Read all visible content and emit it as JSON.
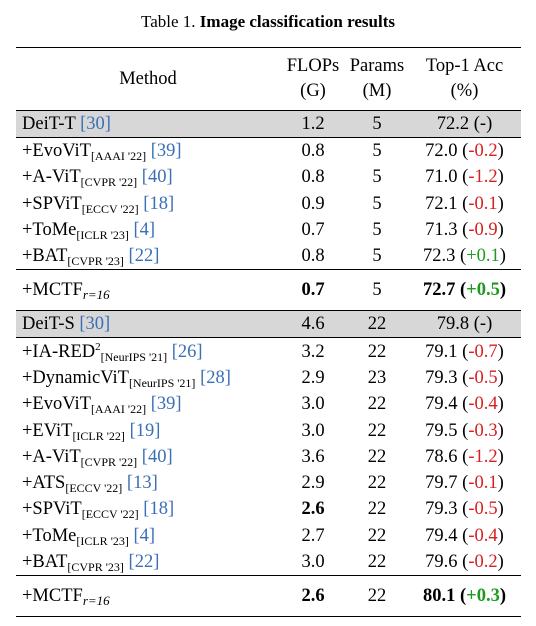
{
  "caption": {
    "label": "Table 1.",
    "title": "Image classification results"
  },
  "headers": {
    "method": "Method",
    "flops": [
      "FLOPs",
      "(G)"
    ],
    "params": [
      "Params",
      "(M)"
    ],
    "acc": [
      "Top-1 Acc",
      "(%)"
    ]
  },
  "groups": [
    {
      "baseline": {
        "name": "DeiT-T ",
        "cite": "[30]",
        "flops": "1.2",
        "params": "5",
        "acc": "72.2",
        "delta": "(-)"
      },
      "rows": [
        {
          "name": "+EvoViT",
          "venue": "[AAAI '22]",
          "cite": " [39]",
          "flops": "0.8",
          "params": "5",
          "acc": "72.0",
          "delta": "-0.2",
          "sign": "neg"
        },
        {
          "name": "+A-ViT",
          "venue": "[CVPR '22]",
          "cite": " [40]",
          "flops": "0.8",
          "params": "5",
          "acc": "71.0",
          "delta": "-1.2",
          "sign": "neg"
        },
        {
          "name": "+SPViT",
          "venue": "[ECCV '22]",
          "cite": " [18]",
          "flops": "0.9",
          "params": "5",
          "acc": "72.1",
          "delta": "-0.1",
          "sign": "neg"
        },
        {
          "name": "+ToMe",
          "venue": "[ICLR '23]",
          "cite": " [4]",
          "flops": "0.7",
          "params": "5",
          "acc": "71.3",
          "delta": "-0.9",
          "sign": "neg"
        },
        {
          "name": "+BAT",
          "venue": "[CVPR '23]",
          "cite": " [22]",
          "flops": "0.8",
          "params": "5",
          "acc": "72.3",
          "delta": "+0.1",
          "sign": "pos"
        }
      ],
      "summary": {
        "name": "+MCTF",
        "sub": "r=16",
        "flops": "0.7",
        "params": "5",
        "acc": "72.7",
        "delta": "+0.5"
      }
    },
    {
      "baseline": {
        "name": "DeiT-S ",
        "cite": "[30]",
        "flops": "4.6",
        "params": "22",
        "acc": "79.8",
        "delta": "(-)"
      },
      "rows": [
        {
          "name": "+IA-RED",
          "sup": "2",
          "venue": "[NeurIPS '21]",
          "cite": " [26]",
          "flops": "3.2",
          "params": "22",
          "acc": "79.1",
          "delta": "-0.7",
          "sign": "neg"
        },
        {
          "name": "+DynamicViT",
          "venue": "[NeurIPS '21]",
          "cite": " [28]",
          "flops": "2.9",
          "params": "23",
          "acc": "79.3",
          "delta": "-0.5",
          "sign": "neg"
        },
        {
          "name": "+EvoViT",
          "venue": "[AAAI '22]",
          "cite": " [39]",
          "flops": "3.0",
          "params": "22",
          "acc": "79.4",
          "delta": "-0.4",
          "sign": "neg"
        },
        {
          "name": "+EViT",
          "venue": "[ICLR '22]",
          "cite": " [19]",
          "flops": "3.0",
          "params": "22",
          "acc": "79.5",
          "delta": "-0.3",
          "sign": "neg"
        },
        {
          "name": "+A-ViT",
          "venue": "[CVPR '22]",
          "cite": " [40]",
          "flops": "3.6",
          "params": "22",
          "acc": "78.6",
          "delta": "-1.2",
          "sign": "neg"
        },
        {
          "name": "+ATS",
          "venue": "[ECCV '22]",
          "cite": " [13]",
          "flops": "2.9",
          "params": "22",
          "acc": "79.7",
          "delta": "-0.1",
          "sign": "neg"
        },
        {
          "name": "+SPViT",
          "venue": "[ECCV '22]",
          "cite": " [18]",
          "flops": "2.6",
          "flops_bold": true,
          "params": "22",
          "acc": "79.3",
          "delta": "-0.5",
          "sign": "neg"
        },
        {
          "name": "+ToMe",
          "venue": "[ICLR '23]",
          "cite": " [4]",
          "flops": "2.7",
          "params": "22",
          "acc": "79.4",
          "delta": "-0.4",
          "sign": "neg"
        },
        {
          "name": "+BAT",
          "venue": "[CVPR '23]",
          "cite": " [22]",
          "flops": "3.0",
          "params": "22",
          "acc": "79.6",
          "delta": "-0.2",
          "sign": "neg"
        }
      ],
      "summary": {
        "name": "+MCTF",
        "sub": "r=16",
        "flops": "2.6",
        "params": "22",
        "acc": "80.1",
        "delta": "+0.3"
      }
    }
  ]
}
